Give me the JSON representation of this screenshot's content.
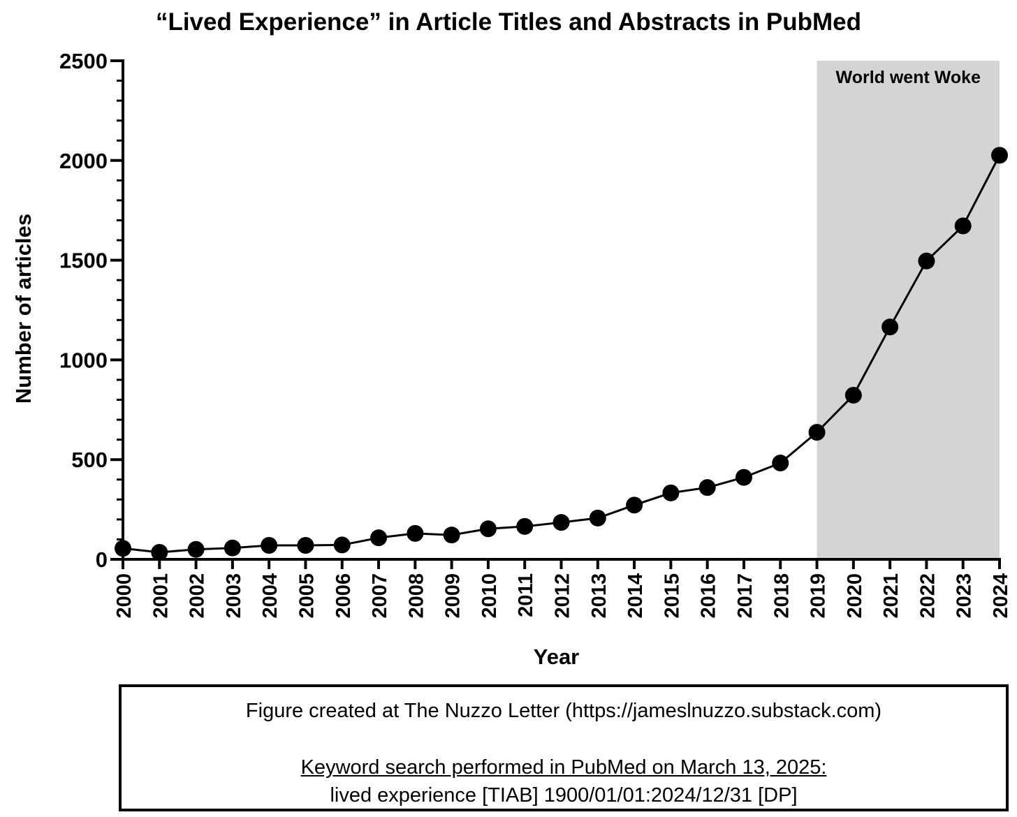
{
  "chart_data": {
    "type": "line",
    "title": "“Lived Experience” in Article Titles and Abstracts in PubMed",
    "xlabel": "Year",
    "ylabel": "Number of articles",
    "ylim": [
      0,
      2500
    ],
    "yticks": [
      0,
      500,
      1000,
      1500,
      2000,
      2500
    ],
    "grid": false,
    "markers": "filled circles",
    "line_color": "#000000",
    "categories": [
      "2000",
      "2001",
      "2002",
      "2003",
      "2004",
      "2005",
      "2006",
      "2007",
      "2008",
      "2009",
      "2010",
      "2011",
      "2012",
      "2013",
      "2014",
      "2015",
      "2016",
      "2017",
      "2018",
      "2019",
      "2020",
      "2021",
      "2022",
      "2023",
      "2024"
    ],
    "values": [
      55,
      35,
      50,
      57,
      70,
      70,
      72,
      108,
      130,
      122,
      153,
      165,
      185,
      207,
      272,
      333,
      360,
      411,
      483,
      637,
      823,
      1165,
      1496,
      1672,
      2026
    ],
    "annotation": {
      "label": "World went Woke",
      "x_start": "2019",
      "x_end": "2024",
      "color": "#d4d4d4"
    }
  },
  "footnote": {
    "line1": "Figure created at The Nuzzo Letter (https://jameslnuzzo.substack.com)",
    "line2": "Keyword search performed in PubMed on March 13, 2025:",
    "line3": "lived experience [TIAB] 1900/01/01:2024/12/31 [DP]"
  }
}
